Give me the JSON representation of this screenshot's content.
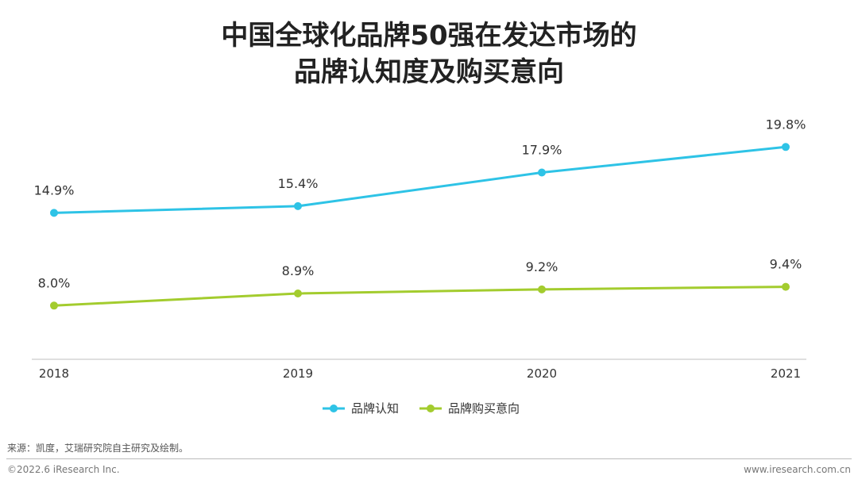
{
  "title": {
    "line1": "中国全球化品牌50强在发达市场的",
    "line2": "品牌认知度及购买意向"
  },
  "chart_data": {
    "type": "line",
    "categories": [
      "2018",
      "2019",
      "2020",
      "2021"
    ],
    "series": [
      {
        "name": "品牌认知",
        "color": "#2EC3E6",
        "values": [
          14.9,
          15.4,
          17.9,
          19.8
        ],
        "labels": [
          "14.9%",
          "15.4%",
          "17.9%",
          "19.8%"
        ]
      },
      {
        "name": "品牌购买意向",
        "color": "#A3CC2E",
        "values": [
          8.0,
          8.9,
          9.2,
          9.4
        ],
        "labels": [
          "8.0%",
          "8.9%",
          "9.2%",
          "9.4%"
        ]
      }
    ],
    "ylim": [
      3,
      21
    ],
    "grid": false,
    "legend": "bottom-center",
    "xlabel": "",
    "ylabel": ""
  },
  "footer": {
    "source": "来源：凯度，艾瑞研究院自主研究及绘制。",
    "copyright": "©2022.6 iResearch Inc.",
    "website": "www.iresearch.com.cn"
  }
}
